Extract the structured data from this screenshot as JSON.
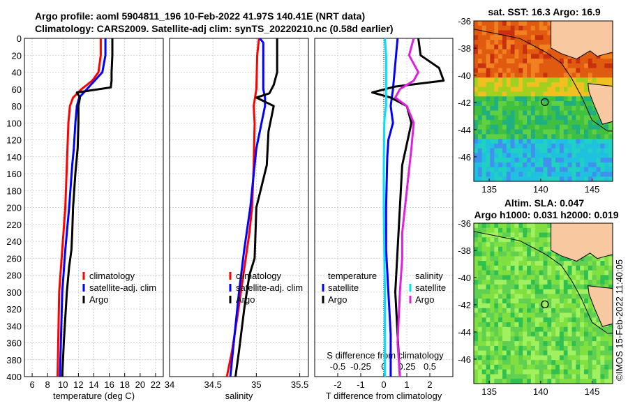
{
  "colors": {
    "climatology": "#ff0000",
    "satellite": "#0000ff",
    "argo": "#000000",
    "s_satellite": "#00e0ff",
    "s_argo": "#e020e0",
    "land": "#f8c8a0"
  },
  "header": {
    "line1": "Argo profile: aoml 5904811_196 10-Feb-2022 41.97S 140.41E (NRT data)",
    "line2": "Climatology: CARS2009. Satellite-adj clim: synTS_20220210.nc (0.58d earlier)"
  },
  "maps": {
    "sst_title": "sat. SST: 16.3 Argo: 16.9",
    "sla_title1": "Altim. SLA: 0.047",
    "sla_title2": "Argo h1000: 0.031 h2000: 0.019",
    "lat_ticks": [
      "-36",
      "-38",
      "-40",
      "-42",
      "-44",
      "-46"
    ],
    "lon_ticks": [
      "135",
      "140",
      "145"
    ],
    "lat_ticks_num": [
      -36,
      -38,
      -40,
      -42,
      -44,
      -46
    ],
    "lon_ticks_num": [
      135,
      140,
      145
    ],
    "lat_range": [
      -47.8,
      -36
    ],
    "lon_range": [
      133.5,
      147
    ],
    "argo_position": {
      "lon": 140.41,
      "lat": -41.97
    },
    "watermark": "©IMOS 15-Feb-2022 11:40:05"
  },
  "chart_data": [
    {
      "type": "line",
      "name": "temperature",
      "xlabel": "temperature (deg C)",
      "xlim": [
        5,
        23
      ],
      "xticks": [
        6,
        8,
        10,
        12,
        14,
        16,
        18,
        20,
        22
      ],
      "xtick_labels": [
        "6",
        "8",
        "10",
        "12",
        "14",
        "16",
        "18",
        "20",
        "22"
      ],
      "ylim": [
        400,
        0
      ],
      "yticks": [
        0,
        20,
        40,
        60,
        80,
        100,
        120,
        140,
        160,
        180,
        200,
        220,
        240,
        260,
        280,
        300,
        320,
        340,
        360,
        380,
        400
      ],
      "ytick_labels": [
        "0",
        "20",
        "40",
        "60",
        "80",
        "100",
        "120",
        "140",
        "160",
        "180",
        "200",
        "220",
        "240",
        "260",
        "280",
        "300",
        "320",
        "340",
        "360",
        "380",
        "400"
      ],
      "legend": [
        "climatology",
        "satellite-adj. clim",
        "Argo"
      ],
      "series": [
        {
          "name": "climatology",
          "color": "#ff0000",
          "x": [
            14.9,
            14.9,
            14.6,
            13.8,
            12.4,
            11.3,
            10.9,
            10.7,
            10.5,
            10.3,
            9.9,
            9.5,
            9.3
          ],
          "y": [
            0,
            20,
            40,
            50,
            60,
            70,
            80,
            100,
            150,
            200,
            250,
            300,
            400
          ]
        },
        {
          "name": "satellite-adj. clim",
          "color": "#0000ff",
          "x": [
            15.5,
            15.5,
            15.1,
            13.6,
            12.1,
            11.8,
            11.6,
            11.4,
            11.2,
            10.8,
            10.3,
            9.9,
            9.6
          ],
          "y": [
            0,
            20,
            40,
            55,
            70,
            80,
            100,
            130,
            150,
            200,
            250,
            300,
            400
          ]
        },
        {
          "name": "Argo",
          "color": "#000000",
          "x": [
            16.4,
            16.4,
            16.3,
            16.3,
            16.2,
            11.8,
            12.2,
            12.0,
            12.0,
            11.9,
            11.6,
            11.3,
            11.2,
            11.1,
            10.8,
            10.5,
            10.1,
            9.9
          ],
          "y": [
            0,
            20,
            40,
            50,
            58,
            64,
            70,
            80,
            100,
            130,
            160,
            200,
            230,
            250,
            270,
            300,
            360,
            400
          ]
        }
      ]
    },
    {
      "type": "line",
      "name": "salinity",
      "xlabel": "salinity",
      "xlim": [
        34,
        35.6
      ],
      "xticks": [
        34,
        34.5,
        35,
        35.5
      ],
      "xtick_labels": [
        "34",
        "34.5",
        "35",
        "35.5"
      ],
      "ylim": [
        400,
        0
      ],
      "legend": [
        "climatology",
        "satellite-adj. clim",
        "Argo"
      ],
      "series": [
        {
          "name": "climatology",
          "color": "#ff0000",
          "x": [
            35.03,
            35.01,
            35.0,
            34.97,
            34.98,
            34.97,
            34.95,
            34.92,
            34.85,
            34.78,
            34.72,
            34.66
          ],
          "y": [
            0,
            20,
            60,
            80,
            100,
            150,
            200,
            230,
            280,
            330,
            370,
            400
          ]
        },
        {
          "name": "satellite-adj. clim",
          "color": "#0000ff",
          "x": [
            35.04,
            35.08,
            35.08,
            35.1,
            35.1,
            35.06,
            35.0,
            34.93,
            34.86,
            34.8,
            34.74,
            34.7
          ],
          "y": [
            0,
            5,
            60,
            70,
            80,
            100,
            130,
            200,
            250,
            300,
            360,
            400
          ]
        },
        {
          "name": "Argo",
          "color": "#000000",
          "x": [
            35.24,
            35.24,
            35.24,
            35.2,
            35.15,
            35.0,
            35.1,
            35.2,
            35.18,
            35.14,
            35.12,
            35.0,
            34.98,
            34.92,
            34.86,
            34.8,
            34.76
          ],
          "y": [
            0,
            20,
            40,
            55,
            65,
            70,
            75,
            80,
            90,
            110,
            150,
            200,
            260,
            280,
            320,
            370,
            400
          ]
        }
      ]
    },
    {
      "type": "line",
      "name": "differences",
      "xlabel": "T difference from climatology",
      "xlabel_top": "S difference from climatology",
      "xlim": [
        -3,
        3
      ],
      "xticks": [
        -2,
        -1,
        0,
        1,
        2
      ],
      "xtick_labels": [
        "-2",
        "-1",
        "0",
        "1",
        "2"
      ],
      "xticks_top": [
        -0.5,
        -0.25,
        0,
        0.25,
        0.5
      ],
      "xtick_labels_top": [
        "-0.5",
        "-0.25",
        "0",
        "0.25",
        "0.5"
      ],
      "ylim": [
        400,
        0
      ],
      "legend_left_title": "temperature",
      "legend_left": [
        "satellite",
        "Argo"
      ],
      "legend_right_title": "salinity",
      "legend_right": [
        "satellite",
        "Argo"
      ],
      "series": [
        {
          "name": "T satellite",
          "color": "#0000ff",
          "x": [
            0.6,
            0.5,
            0.4,
            0.3,
            0.35,
            0.4,
            0.2,
            0.15,
            0.1,
            0.1,
            0.2,
            0.3,
            0.3
          ],
          "y": [
            0,
            30,
            60,
            80,
            90,
            100,
            120,
            140,
            200,
            250,
            300,
            350,
            400
          ]
        },
        {
          "name": "T Argo",
          "color": "#000000",
          "x": [
            1.5,
            1.6,
            2.4,
            2.6,
            0.5,
            -0.5,
            0.3,
            1.0,
            1.2,
            0.8,
            0.7,
            0.6,
            0.5,
            0.6,
            0.7
          ],
          "y": [
            0,
            20,
            35,
            50,
            57,
            64,
            70,
            80,
            100,
            150,
            200,
            250,
            300,
            350,
            400
          ]
        },
        {
          "name": "S satellite",
          "color": "#00e0ff",
          "x": [
            0.05,
            0.1,
            0.1,
            0.1,
            0.05,
            0.02,
            0.0,
            0.0,
            0.02,
            0.05,
            0.05
          ],
          "y": [
            0,
            20,
            60,
            80,
            90,
            100,
            150,
            200,
            250,
            300,
            400
          ]
        },
        {
          "name": "S Argo",
          "color": "#e020e0",
          "x": [
            1.3,
            1.1,
            1.5,
            1.3,
            0.7,
            0.5,
            1.0,
            1.3,
            1.2,
            1.0,
            0.8,
            0.8,
            0.7,
            0.6,
            0.7
          ],
          "y": [
            0,
            20,
            40,
            50,
            60,
            70,
            80,
            100,
            130,
            180,
            230,
            260,
            300,
            360,
            400
          ]
        }
      ]
    }
  ]
}
